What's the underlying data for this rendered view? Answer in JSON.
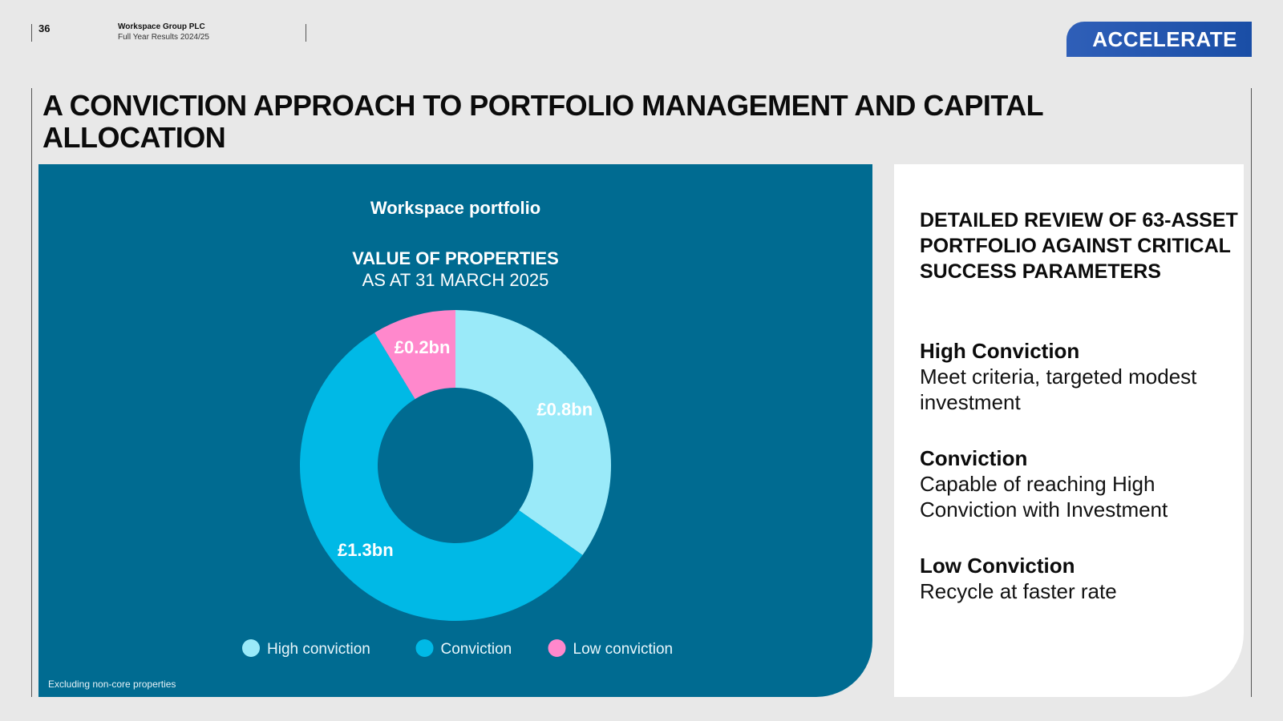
{
  "header": {
    "page_number": "36",
    "company": "Workspace Group PLC",
    "document": "Full Year Results 2024/25",
    "badge": "ACCELERATE"
  },
  "title": "A CONVICTION APPROACH TO PORTFOLIO MANAGEMENT AND CAPITAL ALLOCATION",
  "chart_data": {
    "type": "pie",
    "title": "Workspace portfolio",
    "subtitle_bold": "VALUE OF PROPERTIES",
    "subtitle": "AS AT 31 MARCH 2025",
    "categories": [
      "High conviction",
      "Conviction",
      "Low conviction"
    ],
    "values": [
      0.8,
      1.3,
      0.2
    ],
    "labels": [
      "£0.8bn",
      "£1.3bn",
      "£0.2bn"
    ],
    "colors": [
      "#9aeaf9",
      "#00b9e6",
      "#ff88cc"
    ],
    "legend_position": "bottom",
    "footnote": "Excluding non-core properties"
  },
  "right_panel": {
    "heading": "DETAILED REVIEW OF 63-ASSET PORTFOLIO AGAINST CRITICAL SUCCESS PARAMETERS",
    "items": [
      {
        "title": "High Conviction",
        "desc": "Meet criteria, targeted modest investment"
      },
      {
        "title": "Conviction",
        "desc": "Capable of reaching High Conviction with Investment"
      },
      {
        "title": "Low Conviction",
        "desc": "Recycle at faster rate"
      }
    ]
  }
}
